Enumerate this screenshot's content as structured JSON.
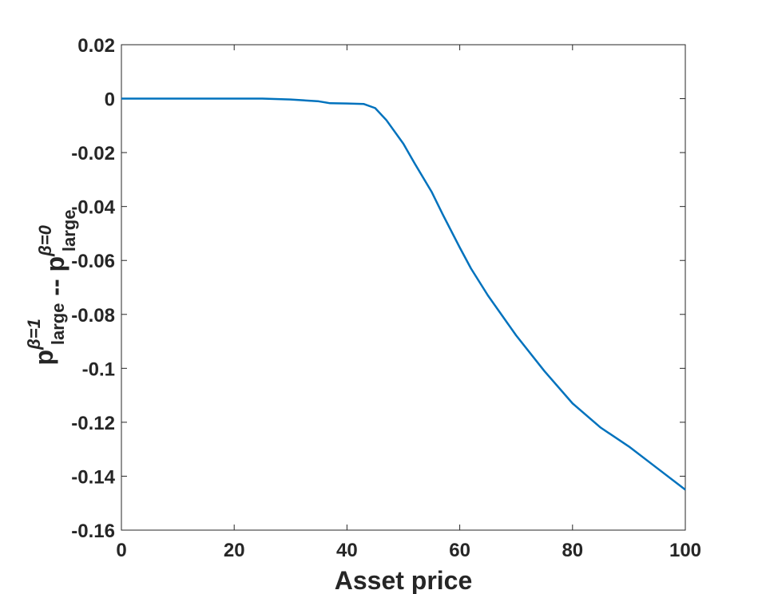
{
  "chart_data": {
    "type": "line",
    "xlabel": "Asset price",
    "ylabel": [
      {
        "text": "p",
        "sup": "β=1",
        "sub": "large"
      },
      {
        "text": " -- "
      },
      {
        "text": "p",
        "sup": "β=0",
        "sub": "large"
      }
    ],
    "x": [
      0,
      5,
      10,
      15,
      20,
      25,
      30,
      35,
      37,
      40,
      43,
      45,
      47,
      50,
      52,
      55,
      57,
      60,
      62,
      65,
      70,
      75,
      80,
      85,
      90,
      95,
      100
    ],
    "series": [
      {
        "color": "#0072bd",
        "values": [
          0,
          0,
          0,
          0,
          0,
          0,
          -0.0003,
          -0.001,
          -0.0017,
          -0.0018,
          -0.002,
          -0.0035,
          -0.008,
          -0.0167,
          -0.024,
          -0.0345,
          -0.043,
          -0.0552,
          -0.063,
          -0.073,
          -0.0878,
          -0.101,
          -0.113,
          -0.122,
          -0.129,
          -0.137,
          -0.145
        ]
      }
    ],
    "xlim": [
      0,
      100
    ],
    "xticks": [
      0,
      20,
      40,
      60,
      80,
      100
    ],
    "ylim": [
      -0.16,
      0.02
    ],
    "yticks": [
      -0.16,
      -0.14,
      -0.12,
      -0.1,
      -0.08,
      -0.06,
      -0.04,
      -0.02,
      0,
      0.02
    ],
    "grid": false
  }
}
